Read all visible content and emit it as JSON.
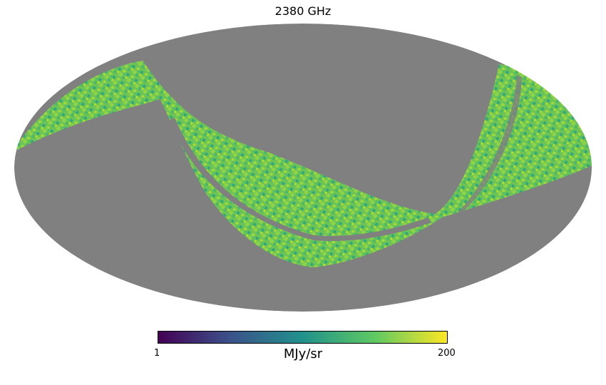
{
  "title": "2380 GHz",
  "projection": "mollweide",
  "colorbar": {
    "min_label": "1",
    "max_label": "200",
    "unit_label": "MJy/sr",
    "colormap": "viridis",
    "stops": [
      "#440154",
      "#3b528b",
      "#21918c",
      "#5ec962",
      "#fde725"
    ]
  },
  "colors": {
    "masked": "#808080",
    "background": "#ffffff"
  }
}
